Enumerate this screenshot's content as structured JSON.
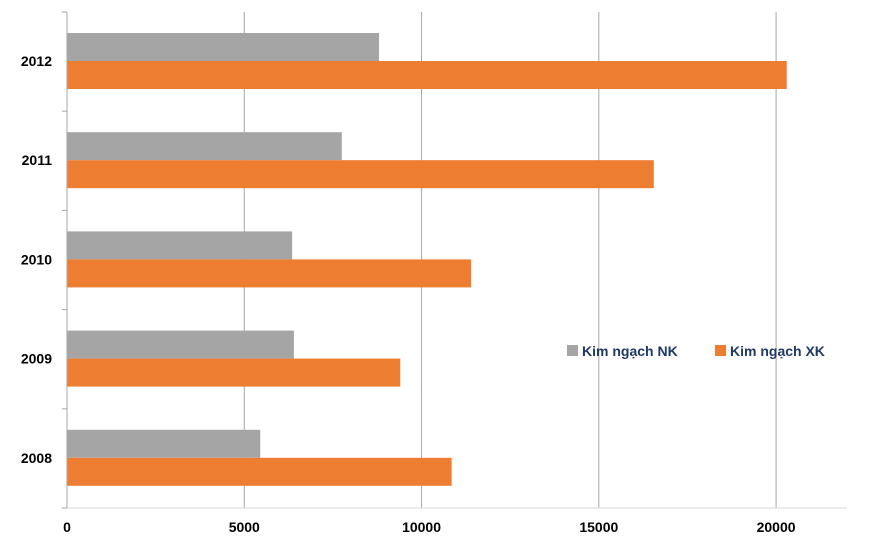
{
  "chart_data": {
    "type": "bar",
    "orientation": "horizontal",
    "title": "",
    "xlabel": "",
    "ylabel": "",
    "categories": [
      "2012",
      "2011",
      "2010",
      "2009",
      "2008"
    ],
    "series": [
      {
        "name": "Kim ngạch NK",
        "color": "#a5a5a5",
        "values": [
          8800,
          7750,
          6350,
          6400,
          5450
        ]
      },
      {
        "name": "Kim ngạch XK",
        "color": "#ed7d31",
        "values": [
          20300,
          16550,
          11400,
          9400,
          10850
        ]
      }
    ],
    "xlim": [
      0,
      22000
    ],
    "xticks": [
      0,
      5000,
      10000,
      15000,
      20000
    ],
    "xtick_labels": [
      "0",
      "5000",
      "10000",
      "15000",
      "20000"
    ],
    "grid": "vertical",
    "legend": "right"
  }
}
